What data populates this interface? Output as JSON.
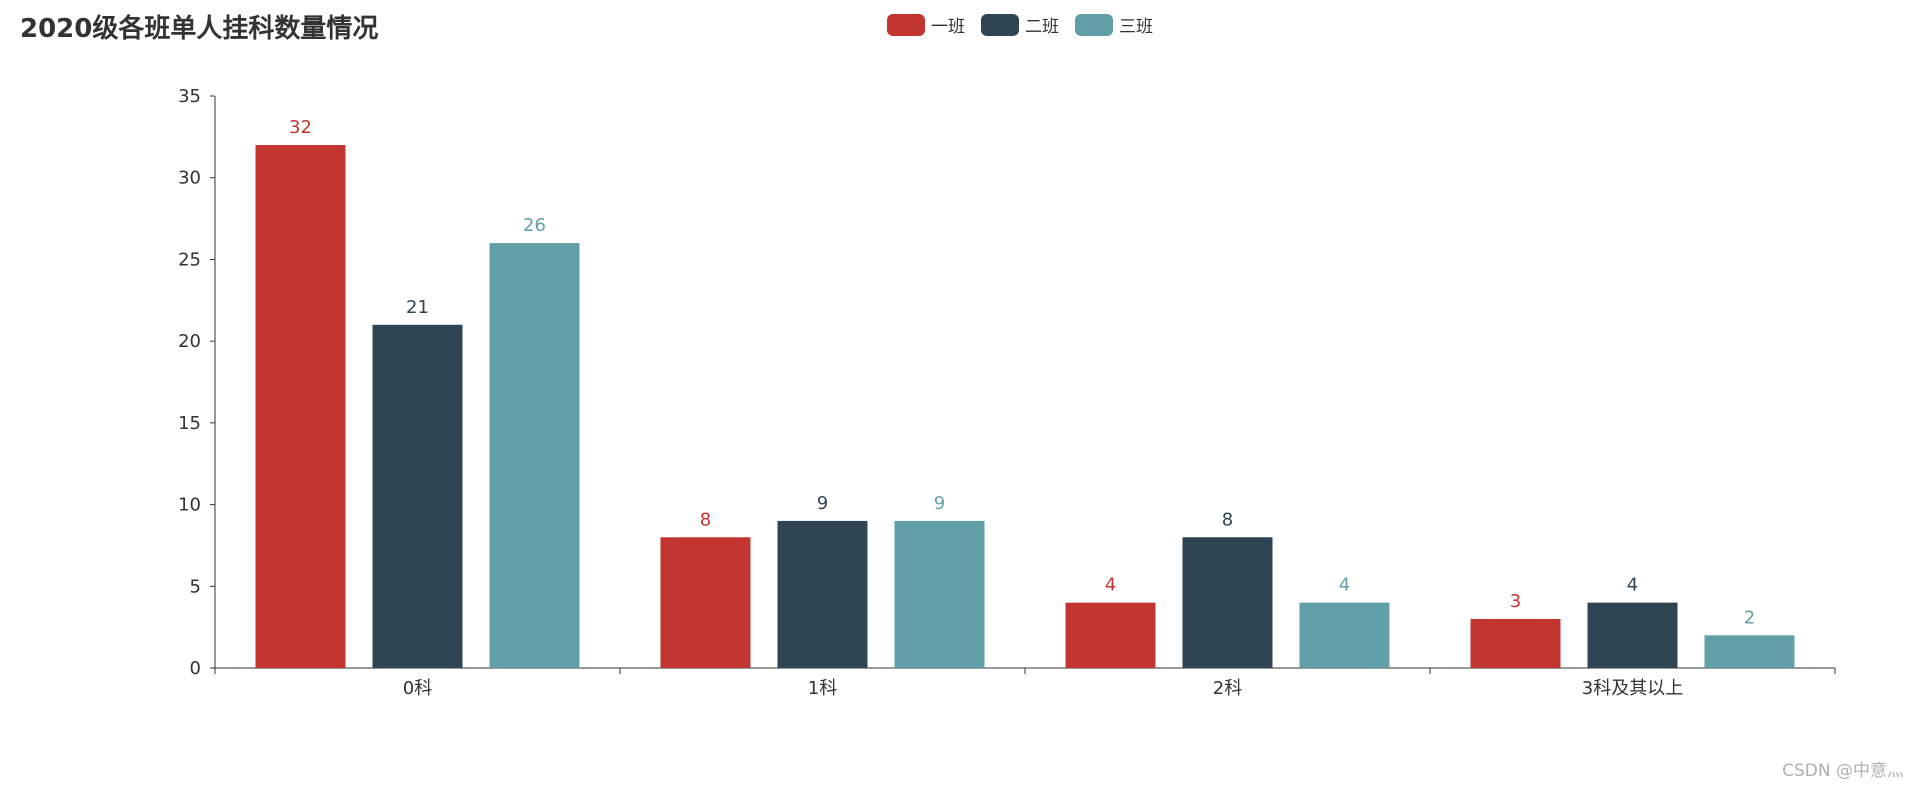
{
  "chart_data": {
    "type": "bar",
    "title": "2020级各班单人挂科数量情况",
    "categories": [
      "0科",
      "1科",
      "2科",
      "3科及其以上"
    ],
    "series": [
      {
        "name": "一班",
        "color": "#c23531",
        "values": [
          32,
          8,
          4,
          3
        ]
      },
      {
        "name": "二班",
        "color": "#2f4554",
        "values": [
          21,
          9,
          8,
          4
        ]
      },
      {
        "name": "三班",
        "color": "#61a0a8",
        "values": [
          26,
          9,
          4,
          2
        ]
      }
    ],
    "yticks": [
      0,
      5,
      10,
      15,
      20,
      25,
      30,
      35
    ],
    "ylim": [
      0,
      35
    ],
    "grid": false,
    "legend_position": "top-center",
    "data_labels": true
  },
  "watermark": "CSDN @中意灬"
}
